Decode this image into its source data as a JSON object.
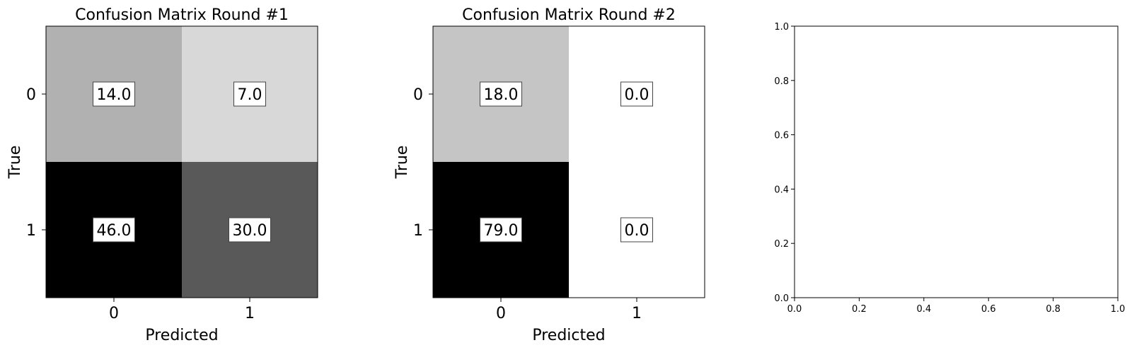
{
  "chart_data": [
    {
      "type": "heatmap",
      "title": "Confusion Matrix Round #1",
      "xlabel": "Predicted",
      "ylabel": "True",
      "x_categories": [
        "0",
        "1"
      ],
      "y_categories": [
        "0",
        "1"
      ],
      "values": [
        [
          14.0,
          7.0
        ],
        [
          46.0,
          30.0
        ]
      ],
      "value_labels": [
        [
          "14.0",
          "7.0"
        ],
        [
          "46.0",
          "30.0"
        ]
      ],
      "colormap": "gray_r"
    },
    {
      "type": "heatmap",
      "title": "Confusion Matrix Round #2",
      "xlabel": "Predicted",
      "ylabel": "True",
      "x_categories": [
        "0",
        "1"
      ],
      "y_categories": [
        "0",
        "1"
      ],
      "values": [
        [
          18.0,
          0.0
        ],
        [
          79.0,
          0.0
        ]
      ],
      "value_labels": [
        [
          "18.0",
          "0.0"
        ],
        [
          "79.0",
          "0.0"
        ]
      ],
      "colormap": "gray_r"
    },
    {
      "type": "empty",
      "title": "",
      "xlabel": "",
      "ylabel": "",
      "xlim": [
        0.0,
        1.0
      ],
      "ylim": [
        0.0,
        1.0
      ],
      "x_ticks": [
        "0.0",
        "0.2",
        "0.4",
        "0.6",
        "0.8",
        "1.0"
      ],
      "y_ticks": [
        "0.0",
        "0.2",
        "0.4",
        "0.6",
        "0.8",
        "1.0"
      ]
    }
  ]
}
